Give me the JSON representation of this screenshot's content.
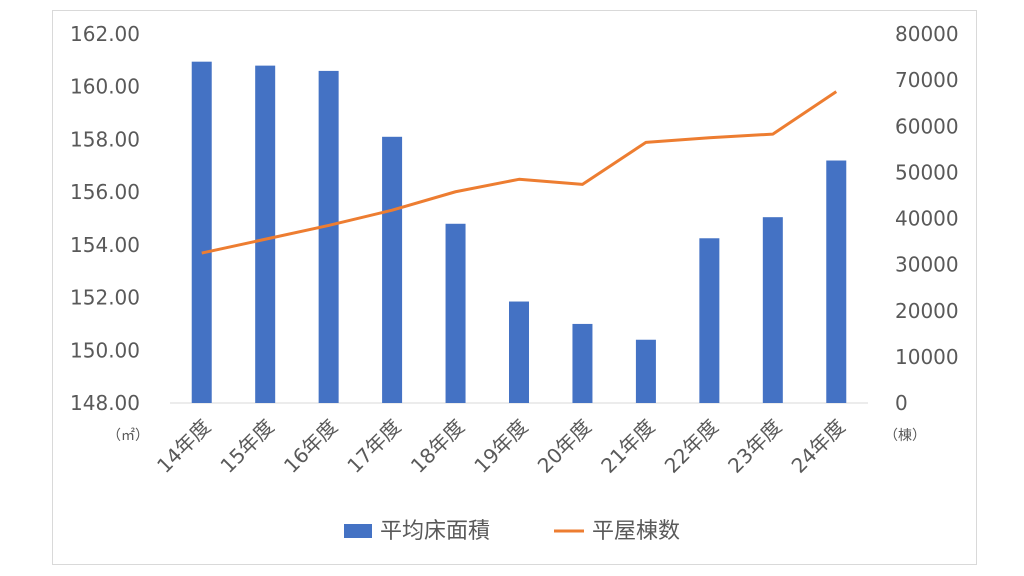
{
  "chart_data": {
    "type": "bar",
    "categories": [
      "14年度",
      "15年度",
      "16年度",
      "17年度",
      "18年度",
      "19年度",
      "20年度",
      "21年度",
      "22年度",
      "23年度",
      "24年度"
    ],
    "series": [
      {
        "name": "平均床面積",
        "type": "bar",
        "axis": "left",
        "color": "#4472c4",
        "values": [
          160.95,
          160.8,
          160.6,
          158.1,
          154.8,
          151.85,
          151.0,
          150.4,
          154.25,
          155.05,
          157.2
        ]
      },
      {
        "name": "平屋棟数",
        "type": "line",
        "axis": "right",
        "color": "#ed7d31",
        "values": [
          32500,
          35500,
          38500,
          41800,
          45800,
          48500,
          47400,
          56500,
          57500,
          58300,
          67500
        ]
      }
    ],
    "y_left": {
      "ylim": [
        148,
        162
      ],
      "ticks": [
        "148.00",
        "150.00",
        "152.00",
        "154.00",
        "156.00",
        "158.00",
        "160.00",
        "162.00"
      ],
      "unit": "（㎡）"
    },
    "y_right": {
      "ylim": [
        0,
        80000
      ],
      "ticks": [
        "0",
        "10000",
        "20000",
        "30000",
        "40000",
        "50000",
        "60000",
        "70000",
        "80000"
      ],
      "unit": "（棟）"
    },
    "grid": false,
    "legend_position": "bottom"
  }
}
